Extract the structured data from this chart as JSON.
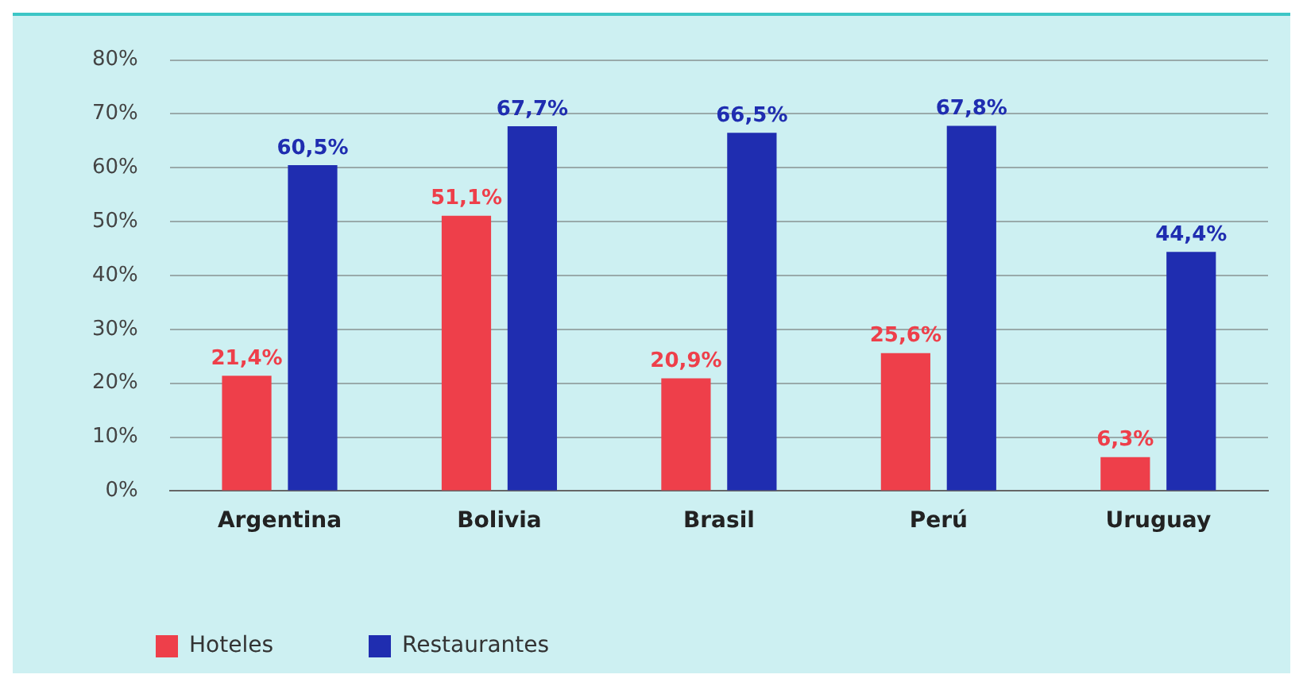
{
  "chart_data": {
    "type": "bar",
    "categories": [
      "Argentina",
      "Bolivia",
      "Brasil",
      "Perú",
      "Uruguay"
    ],
    "series": [
      {
        "name": "Hoteles",
        "color": "#ee3f4a",
        "values": [
          21.4,
          51.1,
          20.9,
          25.6,
          6.3
        ],
        "value_labels": [
          "21,4%",
          "51,1%",
          "20,9%",
          "25,6%",
          "6,3%"
        ]
      },
      {
        "name": "Restaurantes",
        "color": "#1f2db0",
        "values": [
          60.5,
          67.7,
          66.5,
          67.8,
          44.4
        ],
        "value_labels": [
          "60,5%",
          "67,7%",
          "66,5%",
          "67,8%",
          "44,4%"
        ]
      }
    ],
    "ylim": [
      0,
      80
    ],
    "yticks": [
      {
        "value": 0,
        "label": "0%"
      },
      {
        "value": 10,
        "label": "10%"
      },
      {
        "value": 20,
        "label": "20%"
      },
      {
        "value": 30,
        "label": "30%"
      },
      {
        "value": 40,
        "label": "40%"
      },
      {
        "value": 50,
        "label": "50%"
      },
      {
        "value": 60,
        "label": "60%"
      },
      {
        "value": 70,
        "label": "70%"
      },
      {
        "value": 80,
        "label": "80%"
      }
    ],
    "grid": "y",
    "legend": "bottom left"
  }
}
